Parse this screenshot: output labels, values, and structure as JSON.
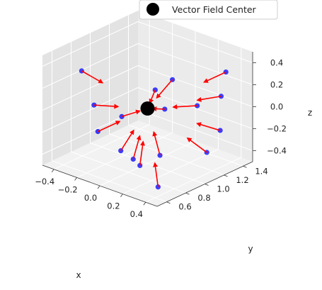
{
  "chart_data": {
    "type": "3d-quiver",
    "title": "",
    "xlabel": "x",
    "ylabel": "y",
    "zlabel": "z",
    "x_ticks": [
      "−0.4",
      "−0.2",
      "0.0",
      "0.2",
      "0.4"
    ],
    "y_ticks": [
      "0.6",
      "0.8",
      "1.0",
      "1.2",
      "1.4"
    ],
    "z_ticks": [
      "−0.4",
      "−0.2",
      "0.0",
      "0.2",
      "0.4"
    ],
    "xlim": [
      -0.5,
      0.5
    ],
    "ylim": [
      0.5,
      1.5
    ],
    "zlim": [
      -0.5,
      0.5
    ],
    "grid": true,
    "legend_position": "top-right",
    "legend": [
      {
        "label": "Vector Field Center",
        "marker": "circle",
        "color": "#000000"
      }
    ],
    "center": {
      "x": 0.0,
      "y": 1.0,
      "z": 0.0
    },
    "point_color": "#0000ff",
    "arrow_color": "#ff0000",
    "arrow_note": "each arrow starts at a sample point and points toward the vector field center",
    "sample_points": [
      {
        "x": -0.2,
        "y": 0.55,
        "z": 0.45
      },
      {
        "x": 0.35,
        "y": 1.4,
        "z": 0.3
      },
      {
        "x": 0.35,
        "y": 1.35,
        "z": 0.1
      },
      {
        "x": 0.1,
        "y": 1.4,
        "z": -0.1
      },
      {
        "x": 0.3,
        "y": 1.4,
        "z": -0.25
      },
      {
        "x": 0.05,
        "y": 1.2,
        "z": 0.2
      },
      {
        "x": -0.1,
        "y": 1.2,
        "z": 0.05
      },
      {
        "x": 0.15,
        "y": 1.0,
        "z": 0.05
      },
      {
        "x": -0.3,
        "y": 0.8,
        "z": 0.0
      },
      {
        "x": -0.1,
        "y": 0.85,
        "z": -0.05
      },
      {
        "x": -0.35,
        "y": 0.9,
        "z": -0.3
      },
      {
        "x": -0.15,
        "y": 0.9,
        "z": -0.4
      },
      {
        "x": 0.0,
        "y": 0.85,
        "z": -0.4
      },
      {
        "x": 0.1,
        "y": 0.8,
        "z": -0.4
      },
      {
        "x": 0.15,
        "y": 0.95,
        "z": -0.35
      },
      {
        "x": 0.35,
        "y": 1.2,
        "z": -0.35
      },
      {
        "x": 0.3,
        "y": 0.75,
        "z": -0.5
      }
    ]
  }
}
